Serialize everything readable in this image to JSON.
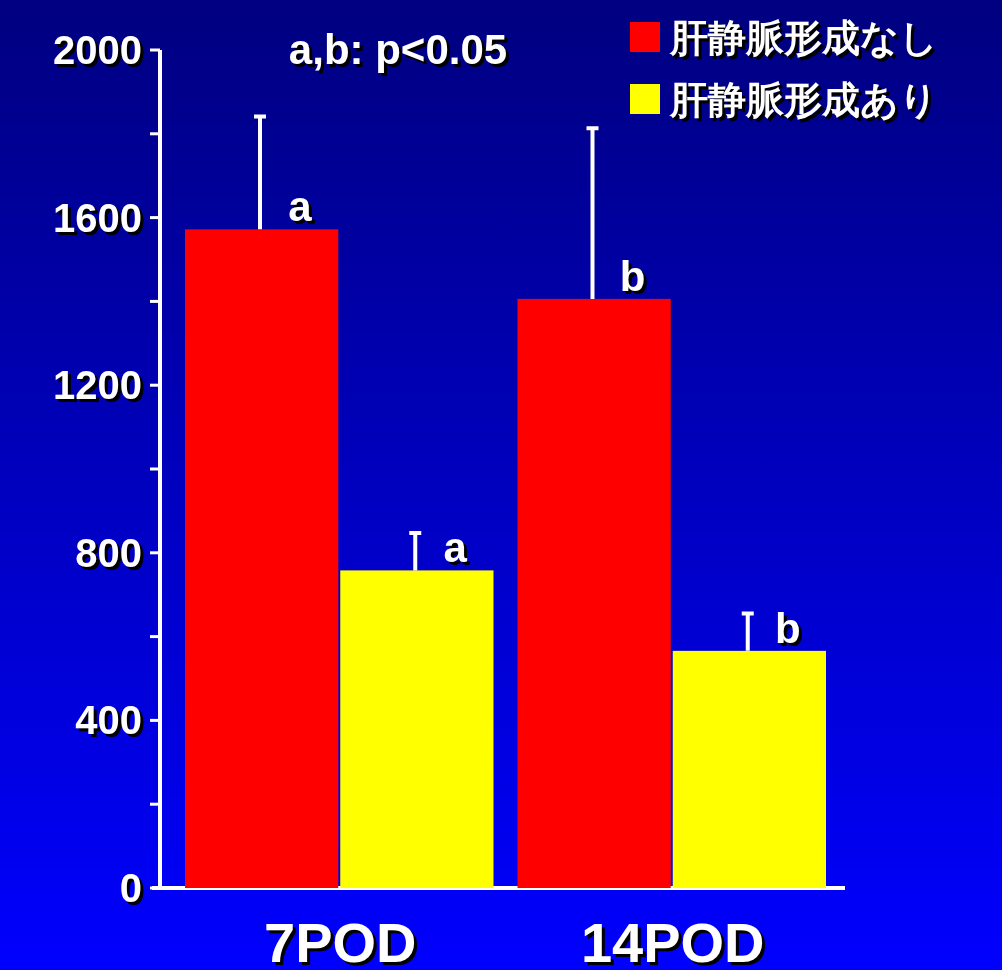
{
  "chart_data": {
    "type": "bar",
    "categories": [
      "7POD",
      "14POD"
    ],
    "series": [
      {
        "name": "肝静脈形成なし",
        "color": "#ff0000",
        "values": [
          1572,
          1406
        ],
        "errors": [
          [
            1572,
            1841
          ],
          [
            1406,
            1813
          ]
        ]
      },
      {
        "name": "肝静脈形成あり",
        "color": "#ffff00",
        "values": [
          758,
          566
        ],
        "errors": [
          [
            758,
            847
          ],
          [
            566,
            655
          ]
        ]
      }
    ],
    "ylim": [
      0,
      2000
    ],
    "yticks": [
      0,
      {
        "value": 200,
        "label": null
      },
      400,
      {
        "value": 600,
        "label": null
      },
      800,
      {
        "value": 1000,
        "label": null
      },
      1200,
      {
        "value": 1400,
        "label": null
      },
      1600,
      {
        "value": 1800,
        "label": null
      },
      2000
    ],
    "legend": "top right",
    "annotations": [
      "a,b: p<0.05",
      {
        "text": "a",
        "x": "7POD",
        "y": 1572
      },
      {
        "text": "a",
        "x": "7POD",
        "y": 758
      },
      {
        "text": "b",
        "x": "14POD",
        "y": 1406
      },
      {
        "text": "b",
        "x": "14POD",
        "y": 566
      }
    ]
  }
}
